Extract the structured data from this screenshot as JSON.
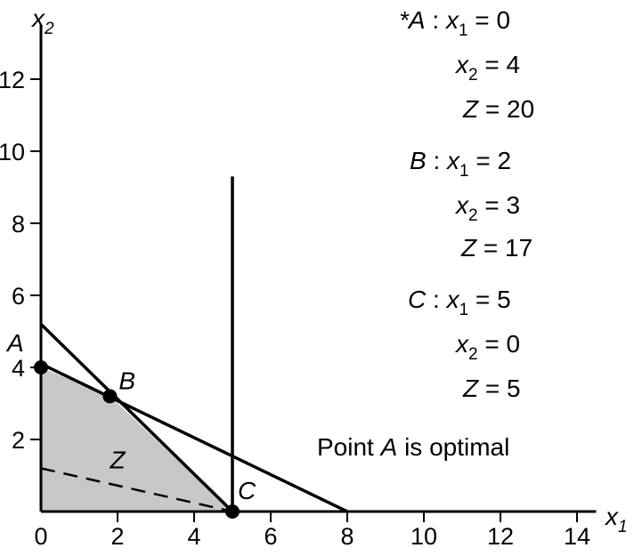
{
  "chart_data": {
    "type": "line",
    "title": "",
    "xlabel": "x",
    "xlabel_sub": "1",
    "ylabel": "x",
    "ylabel_sub": "2",
    "xlim": [
      0,
      14.5
    ],
    "ylim": [
      0,
      13.5
    ],
    "grid": false,
    "x_ticks": [
      0,
      2,
      4,
      6,
      8,
      10,
      12,
      14
    ],
    "y_ticks": [
      2,
      4,
      6,
      8,
      10,
      12
    ],
    "feasible_region": {
      "color": "#c8c8c8",
      "vertices": [
        [
          0,
          0
        ],
        [
          0,
          4
        ],
        [
          1.8,
          3.2
        ],
        [
          5,
          0
        ]
      ]
    },
    "constraints": [
      {
        "points": [
          [
            0,
            5.2
          ],
          [
            5,
            0
          ]
        ]
      },
      {
        "points": [
          [
            0,
            4.1
          ],
          [
            8,
            0
          ]
        ]
      },
      {
        "points": [
          [
            5,
            0
          ],
          [
            5,
            9.3
          ]
        ]
      }
    ],
    "objective_line": {
      "label": "Z",
      "points": [
        [
          0,
          1.2
        ],
        [
          5,
          0
        ]
      ],
      "dashed": true
    },
    "points": [
      {
        "label": "A",
        "x": 0,
        "y": 4
      },
      {
        "label": "B",
        "x": 1.8,
        "y": 3.2
      },
      {
        "label": "C",
        "x": 5,
        "y": 0
      }
    ],
    "annotations": {
      "A": {
        "prefix": "*",
        "name": "A",
        "x1": "0",
        "x2": "4",
        "z": "20"
      },
      "B": {
        "prefix": "",
        "name": "B",
        "x1": "2",
        "x2": "3",
        "z": "17"
      },
      "C": {
        "prefix": "",
        "name": "C",
        "x1": "5",
        "x2": "0",
        "z": "5"
      }
    },
    "note": {
      "pre": "Point ",
      "name": "A",
      "post": " is optimal"
    }
  }
}
